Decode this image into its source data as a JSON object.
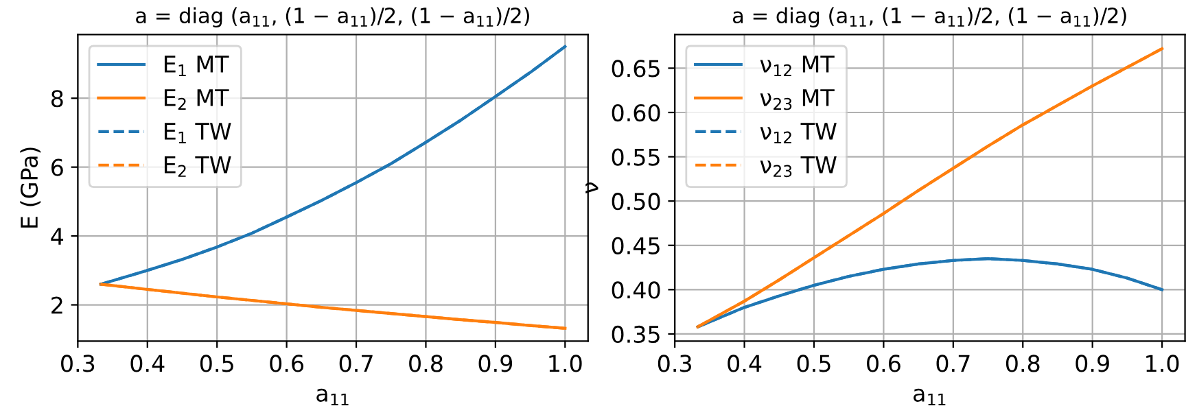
{
  "chart_data": [
    {
      "type": "line",
      "title": "a = diag (a$_{11}$, (1 − a$_{11}$)/2, (1 − a$_{11}$)/2)",
      "xlabel": "a$_{11}$",
      "ylabel": "E (GPa)",
      "x": [
        0.333,
        0.4,
        0.45,
        0.5,
        0.55,
        0.6,
        0.65,
        0.7,
        0.75,
        0.8,
        0.85,
        0.9,
        0.95,
        1.0
      ],
      "series": [
        {
          "name": "E$_{1}$ MT",
          "color": "#1f77b4",
          "line_style": "solid",
          "values": [
            2.6,
            3.0,
            3.32,
            3.68,
            4.08,
            4.55,
            5.03,
            5.55,
            6.1,
            6.72,
            7.36,
            8.05,
            8.75,
            9.5
          ]
        },
        {
          "name": "E$_{2}$ MT",
          "color": "#ff7f0e",
          "line_style": "solid",
          "values": [
            2.6,
            2.45,
            2.34,
            2.23,
            2.13,
            2.03,
            1.93,
            1.84,
            1.75,
            1.66,
            1.57,
            1.49,
            1.4,
            1.32
          ]
        },
        {
          "name": "E$_{1}$ TW",
          "color": "#1f77b4",
          "line_style": "dashed",
          "values": [
            2.6,
            3.0,
            3.32,
            3.68,
            4.08,
            4.55,
            5.03,
            5.55,
            6.1,
            6.72,
            7.36,
            8.05,
            8.75,
            9.5
          ]
        },
        {
          "name": "E$_{2}$ TW",
          "color": "#ff7f0e",
          "line_style": "dashed",
          "values": [
            2.6,
            2.45,
            2.34,
            2.23,
            2.13,
            2.03,
            1.93,
            1.84,
            1.75,
            1.66,
            1.57,
            1.49,
            1.4,
            1.32
          ]
        }
      ],
      "xlim": [
        0.3,
        1.033
      ],
      "ylim": [
        0.95,
        9.85
      ],
      "xticks": [
        0.3,
        0.4,
        0.5,
        0.6,
        0.7,
        0.8,
        0.9,
        {
          "value": 1.0,
          "label": "1.0"
        }
      ],
      "yticks": [
        2,
        4,
        6,
        8
      ],
      "grid": true,
      "legend": "top left",
      "marker": "none"
    },
    {
      "type": "line",
      "title": "a = diag (a$_{11}$, (1 − a$_{11}$)/2, (1 − a$_{11}$)/2)",
      "xlabel": "a$_{11}$",
      "ylabel": "ν",
      "x": [
        0.333,
        0.4,
        0.45,
        0.5,
        0.55,
        0.6,
        0.65,
        0.7,
        0.75,
        0.8,
        0.85,
        0.9,
        0.95,
        1.0
      ],
      "series": [
        {
          "name": "ν$_{12}$ MT",
          "color": "#1f77b4",
          "line_style": "solid",
          "values": [
            0.358,
            0.38,
            0.393,
            0.405,
            0.415,
            0.423,
            0.429,
            0.433,
            0.435,
            0.433,
            0.429,
            0.423,
            0.413,
            0.4
          ]
        },
        {
          "name": "ν$_{23}$ MT",
          "color": "#ff7f0e",
          "line_style": "solid",
          "values": [
            0.358,
            0.387,
            0.411,
            0.436,
            0.461,
            0.486,
            0.512,
            0.537,
            0.562,
            0.586,
            0.608,
            0.63,
            0.651,
            0.672
          ]
        },
        {
          "name": "ν$_{12}$ TW",
          "color": "#1f77b4",
          "line_style": "dashed",
          "values": [
            0.358,
            0.38,
            0.393,
            0.405,
            0.415,
            0.423,
            0.429,
            0.433,
            0.435,
            0.433,
            0.429,
            0.423,
            0.413,
            0.4
          ]
        },
        {
          "name": "ν$_{23}$ TW",
          "color": "#ff7f0e",
          "line_style": "dashed",
          "values": [
            0.358,
            0.387,
            0.411,
            0.436,
            0.461,
            0.486,
            0.512,
            0.537,
            0.562,
            0.586,
            0.608,
            0.63,
            0.651,
            0.672
          ]
        }
      ],
      "xlim": [
        0.3,
        1.033
      ],
      "ylim": [
        0.342,
        0.688
      ],
      "xticks": [
        0.3,
        0.4,
        0.5,
        0.6,
        0.7,
        0.8,
        0.9,
        {
          "value": 1.0,
          "label": "1.0"
        }
      ],
      "yticks": [
        0.35,
        {
          "value": 0.4,
          "label": "0.40"
        },
        0.45,
        {
          "value": 0.5,
          "label": "0.50"
        },
        0.55,
        {
          "value": 0.6,
          "label": "0.60"
        },
        0.65
      ],
      "grid": true,
      "legend": "top left",
      "marker": "none"
    }
  ]
}
